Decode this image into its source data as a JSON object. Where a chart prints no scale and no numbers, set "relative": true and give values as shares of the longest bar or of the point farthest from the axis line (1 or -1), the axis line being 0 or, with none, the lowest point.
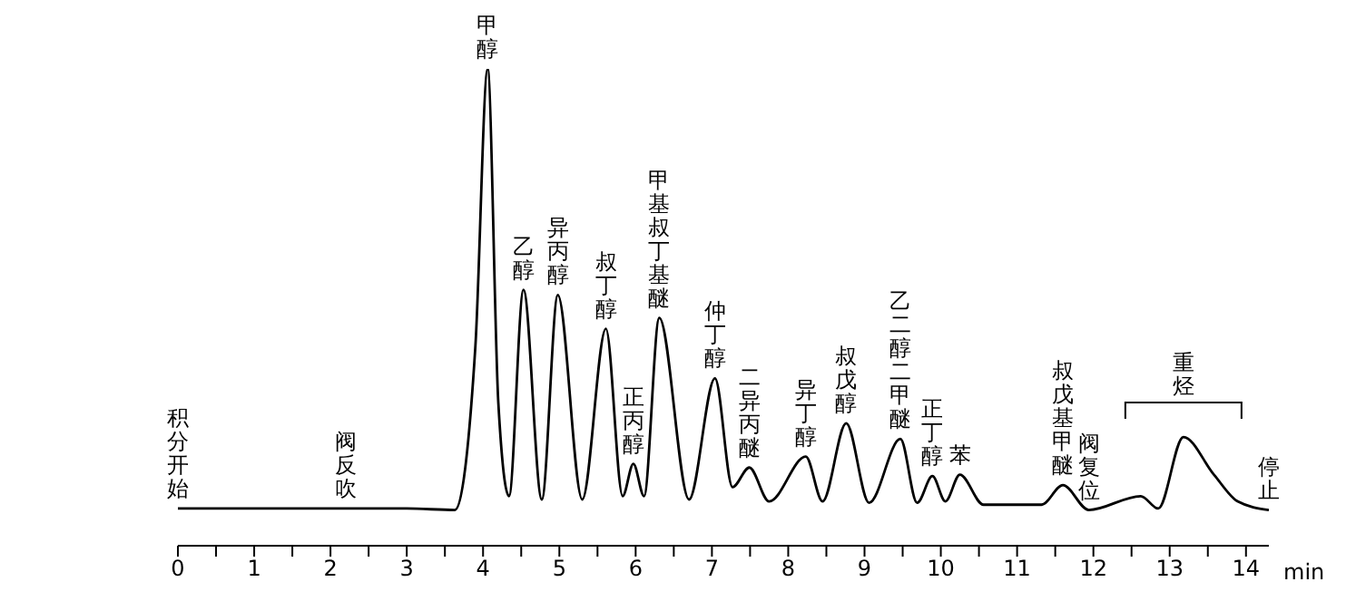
{
  "chart_data": {
    "type": "line",
    "relative": true,
    "xlabel": "min",
    "color": "#000000",
    "marker": "none",
    "line_style": "solid",
    "x": [
      0,
      1,
      2,
      3,
      3.63,
      3.9,
      4.06,
      4.2,
      4.34,
      4.53,
      4.77,
      4.98,
      5.3,
      5.61,
      5.83,
      5.97,
      6.11,
      6.31,
      6.7,
      7.04,
      7.27,
      7.49,
      7.75,
      8.23,
      8.45,
      8.76,
      9.06,
      9.47,
      9.69,
      9.89,
      10.06,
      10.25,
      10.56,
      11.32,
      11.6,
      11.94,
      12.62,
      12.85,
      13.18,
      13.58,
      13.89,
      14.3
    ],
    "values": [
      0.078,
      0.078,
      0.078,
      0.078,
      0.075,
      0.42,
      1.0,
      0.3,
      0.104,
      0.537,
      0.097,
      0.526,
      0.097,
      0.455,
      0.104,
      0.172,
      0.104,
      0.478,
      0.097,
      0.351,
      0.123,
      0.164,
      0.093,
      0.187,
      0.093,
      0.257,
      0.09,
      0.224,
      0.09,
      0.146,
      0.093,
      0.149,
      0.086,
      0.086,
      0.127,
      0.075,
      0.104,
      0.078,
      0.228,
      0.149,
      0.093,
      0.075
    ],
    "xlim": [
      0,
      14.3
    ],
    "xticks": [
      0,
      {
        "value": 0.5,
        "label": null
      },
      1,
      {
        "value": 1.5,
        "label": null
      },
      2,
      {
        "value": 2.5,
        "label": null
      },
      3,
      {
        "value": 3.5,
        "label": null
      },
      4,
      {
        "value": 4.5,
        "label": null
      },
      5,
      {
        "value": 5.5,
        "label": null
      },
      6,
      {
        "value": 6.5,
        "label": null
      },
      7,
      {
        "value": 7.5,
        "label": null
      },
      8,
      {
        "value": 8.5,
        "label": null
      },
      9,
      {
        "value": 9.5,
        "label": null
      },
      10,
      {
        "value": 10.5,
        "label": null
      },
      11,
      {
        "value": 11.5,
        "label": null
      },
      12,
      {
        "value": 12.5,
        "label": null
      },
      13,
      {
        "value": 13.5,
        "label": null
      },
      14
    ],
    "annotations": [
      {
        "text": "积分开始",
        "x": 0,
        "y": 0.078
      },
      {
        "text": "阀反吹",
        "x": 2.2,
        "y": 0.078
      },
      {
        "text": "甲醇",
        "x": 4.06,
        "y": 1.0
      },
      {
        "text": "乙醇",
        "x": 4.53,
        "y": 0.537
      },
      {
        "text": "异丙醇",
        "x": 4.98,
        "y": 0.526
      },
      {
        "text": "叔丁醇",
        "x": 5.61,
        "y": 0.455
      },
      {
        "text": "正丙醇",
        "x": 5.97,
        "y": 0.172
      },
      {
        "text": "甲基叔丁基醚",
        "x": 6.31,
        "y": 0.478
      },
      {
        "text": "仲丁醇",
        "x": 7.04,
        "y": 0.351
      },
      {
        "text": "二异丙醚",
        "x": 7.49,
        "y": 0.164
      },
      {
        "text": "异丁醇",
        "x": 8.23,
        "y": 0.187
      },
      {
        "text": "叔戊醇",
        "x": 8.76,
        "y": 0.257
      },
      {
        "text": "乙二醇二甲醚",
        "x": 9.47,
        "y": 0.224
      },
      {
        "text": "正丁醇",
        "x": 9.89,
        "y": 0.146
      },
      {
        "text": "苯",
        "x": 10.25,
        "y": 0.149
      },
      {
        "text": "叔戊基甲醚",
        "x": 11.6,
        "y": 0.127
      },
      {
        "text": "阀复位",
        "x": 11.94,
        "y": 0.075
      },
      {
        "text": "重烃",
        "x": 13.18,
        "y": 0.228
      },
      {
        "text": "停止",
        "x": 14.3,
        "y": 0.075
      }
    ]
  }
}
